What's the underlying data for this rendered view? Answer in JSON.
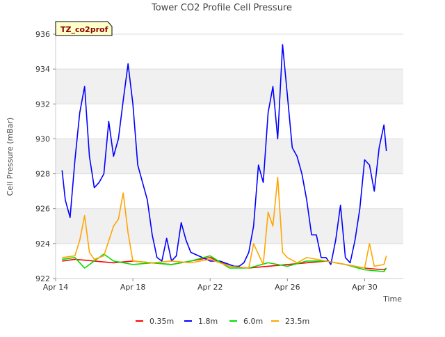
{
  "chart_data": {
    "type": "line",
    "title": "Tower CO2 Profile Cell Pressure",
    "tag_label": "TZ_co2prof",
    "xlabel": "Time",
    "ylabel": "Cell Pressure (mBar)",
    "xlim": [
      "2021-04-14",
      "2021-05-02"
    ],
    "ylim": [
      922,
      936
    ],
    "x_ticks": [
      "Apr 14",
      "Apr 18",
      "Apr 22",
      "Apr 26",
      "Apr 30"
    ],
    "y_ticks": [
      922,
      924,
      926,
      928,
      930,
      932,
      934,
      936
    ],
    "grid": true,
    "legend_position": "bottom",
    "colors": {
      "0.35m": "#ff0000",
      "1.8m": "#0000ff",
      "6.0m": "#00dd00",
      "23.5m": "#ffa500",
      "band": "#f0f0f0",
      "tag_bg": "#ffffcc",
      "tag_text": "#8b0000"
    },
    "series": [
      {
        "name": "0.35m",
        "x": [
          "2021-04-14T08:00",
          "2021-04-15T00:00",
          "2021-04-16T00:00",
          "2021-04-17T00:00",
          "2021-04-18T00:00",
          "2021-04-19T00:00",
          "2021-04-20T00:00",
          "2021-04-21T00:00",
          "2021-04-22T00:00",
          "2021-04-23T00:00",
          "2021-04-24T00:00",
          "2021-04-25T00:00",
          "2021-04-26T00:00",
          "2021-04-27T00:00",
          "2021-04-28T00:00",
          "2021-04-29T00:00",
          "2021-04-30T00:00",
          "2021-05-01T00:00",
          "2021-05-01T03:00"
        ],
        "y": [
          923.0,
          923.1,
          923.0,
          922.9,
          923.0,
          922.9,
          922.8,
          923.0,
          923.2,
          922.7,
          922.6,
          922.7,
          922.8,
          922.9,
          923.0,
          922.8,
          922.6,
          922.5,
          922.6
        ]
      },
      {
        "name": "1.8m",
        "x": [
          "2021-04-14T08:00",
          "2021-04-14T12:00",
          "2021-04-14T18:00",
          "2021-04-15T00:00",
          "2021-04-15T06:00",
          "2021-04-15T12:00",
          "2021-04-15T18:00",
          "2021-04-16T00:00",
          "2021-04-16T06:00",
          "2021-04-16T12:00",
          "2021-04-16T18:00",
          "2021-04-17T00:00",
          "2021-04-17T06:00",
          "2021-04-17T12:00",
          "2021-04-17T18:00",
          "2021-04-18T00:00",
          "2021-04-18T06:00",
          "2021-04-18T12:00",
          "2021-04-18T18:00",
          "2021-04-19T00:00",
          "2021-04-19T06:00",
          "2021-04-19T12:00",
          "2021-04-19T18:00",
          "2021-04-20T00:00",
          "2021-04-20T06:00",
          "2021-04-20T12:00",
          "2021-04-20T18:00",
          "2021-04-21T00:00",
          "2021-04-22T00:00",
          "2021-04-22T12:00",
          "2021-04-23T00:00",
          "2021-04-23T06:00",
          "2021-04-23T12:00",
          "2021-04-23T18:00",
          "2021-04-24T00:00",
          "2021-04-24T06:00",
          "2021-04-24T12:00",
          "2021-04-24T18:00",
          "2021-04-25T00:00",
          "2021-04-25T06:00",
          "2021-04-25T12:00",
          "2021-04-25T18:00",
          "2021-04-26T00:00",
          "2021-04-26T06:00",
          "2021-04-26T12:00",
          "2021-04-26T18:00",
          "2021-04-27T00:00",
          "2021-04-27T06:00",
          "2021-04-27T12:00",
          "2021-04-27T18:00",
          "2021-04-28T00:00",
          "2021-04-28T06:00",
          "2021-04-28T12:00",
          "2021-04-28T18:00",
          "2021-04-29T00:00",
          "2021-04-29T06:00",
          "2021-04-29T12:00",
          "2021-04-29T18:00",
          "2021-04-30T00:00",
          "2021-04-30T06:00",
          "2021-04-30T12:00",
          "2021-04-30T18:00",
          "2021-05-01T00:00",
          "2021-05-01T03:00"
        ],
        "y": [
          928.2,
          926.5,
          925.5,
          928.8,
          931.5,
          933.0,
          929.0,
          927.2,
          927.5,
          928.0,
          931.0,
          929.0,
          930.0,
          932.2,
          934.3,
          932.0,
          928.5,
          927.5,
          926.5,
          924.5,
          923.2,
          923.0,
          924.3,
          923.0,
          923.3,
          925.2,
          924.2,
          923.5,
          923.0,
          923.0,
          922.8,
          922.7,
          922.7,
          922.9,
          923.5,
          925.0,
          928.5,
          927.5,
          931.5,
          933.0,
          930.0,
          935.4,
          932.5,
          929.5,
          929.0,
          928.0,
          926.5,
          924.5,
          924.5,
          923.2,
          923.2,
          922.8,
          924.2,
          926.2,
          923.2,
          922.9,
          924.2,
          926.0,
          928.8,
          928.5,
          927.0,
          929.5,
          930.8,
          929.3
        ]
      },
      {
        "name": "6.0m",
        "x": [
          "2021-04-14T08:00",
          "2021-04-15T00:00",
          "2021-04-15T12:00",
          "2021-04-16T00:00",
          "2021-04-16T12:00",
          "2021-04-17T00:00",
          "2021-04-18T00:00",
          "2021-04-19T00:00",
          "2021-04-20T00:00",
          "2021-04-21T00:00",
          "2021-04-22T00:00",
          "2021-04-23T00:00",
          "2021-04-24T00:00",
          "2021-04-25T00:00",
          "2021-04-26T00:00",
          "2021-04-27T00:00",
          "2021-04-28T00:00",
          "2021-04-29T00:00",
          "2021-04-30T00:00",
          "2021-05-01T00:00",
          "2021-05-01T03:00"
        ],
        "y": [
          923.1,
          923.2,
          922.6,
          923.0,
          923.4,
          923.0,
          922.8,
          922.9,
          922.8,
          923.0,
          923.3,
          922.6,
          922.6,
          922.9,
          922.7,
          923.0,
          923.0,
          922.8,
          922.5,
          922.4,
          922.6
        ]
      },
      {
        "name": "23.5m",
        "x": [
          "2021-04-14T08:00",
          "2021-04-15T00:00",
          "2021-04-15T06:00",
          "2021-04-15T12:00",
          "2021-04-15T18:00",
          "2021-04-16T00:00",
          "2021-04-16T12:00",
          "2021-04-17T00:00",
          "2021-04-17T06:00",
          "2021-04-17T12:00",
          "2021-04-17T18:00",
          "2021-04-18T00:00",
          "2021-04-19T00:00",
          "2021-04-20T00:00",
          "2021-04-21T00:00",
          "2021-04-22T00:00",
          "2021-04-23T00:00",
          "2021-04-24T00:00",
          "2021-04-24T06:00",
          "2021-04-24T18:00",
          "2021-04-25T00:00",
          "2021-04-25T06:00",
          "2021-04-25T12:00",
          "2021-04-25T18:00",
          "2021-04-26T00:00",
          "2021-04-26T12:00",
          "2021-04-27T00:00",
          "2021-04-28T00:00",
          "2021-04-29T00:00",
          "2021-04-30T00:00",
          "2021-04-30T06:00",
          "2021-04-30T12:00",
          "2021-05-01T00:00",
          "2021-05-01T03:00"
        ],
        "y": [
          923.2,
          923.3,
          924.2,
          925.6,
          923.5,
          923.1,
          923.3,
          925.0,
          925.4,
          926.9,
          924.6,
          923.0,
          922.9,
          923.0,
          922.9,
          923.1,
          922.7,
          922.6,
          924.0,
          922.8,
          925.8,
          925.0,
          927.8,
          923.5,
          923.2,
          922.9,
          923.2,
          923.0,
          922.8,
          922.6,
          924.0,
          922.7,
          922.8,
          923.3
        ]
      }
    ]
  }
}
